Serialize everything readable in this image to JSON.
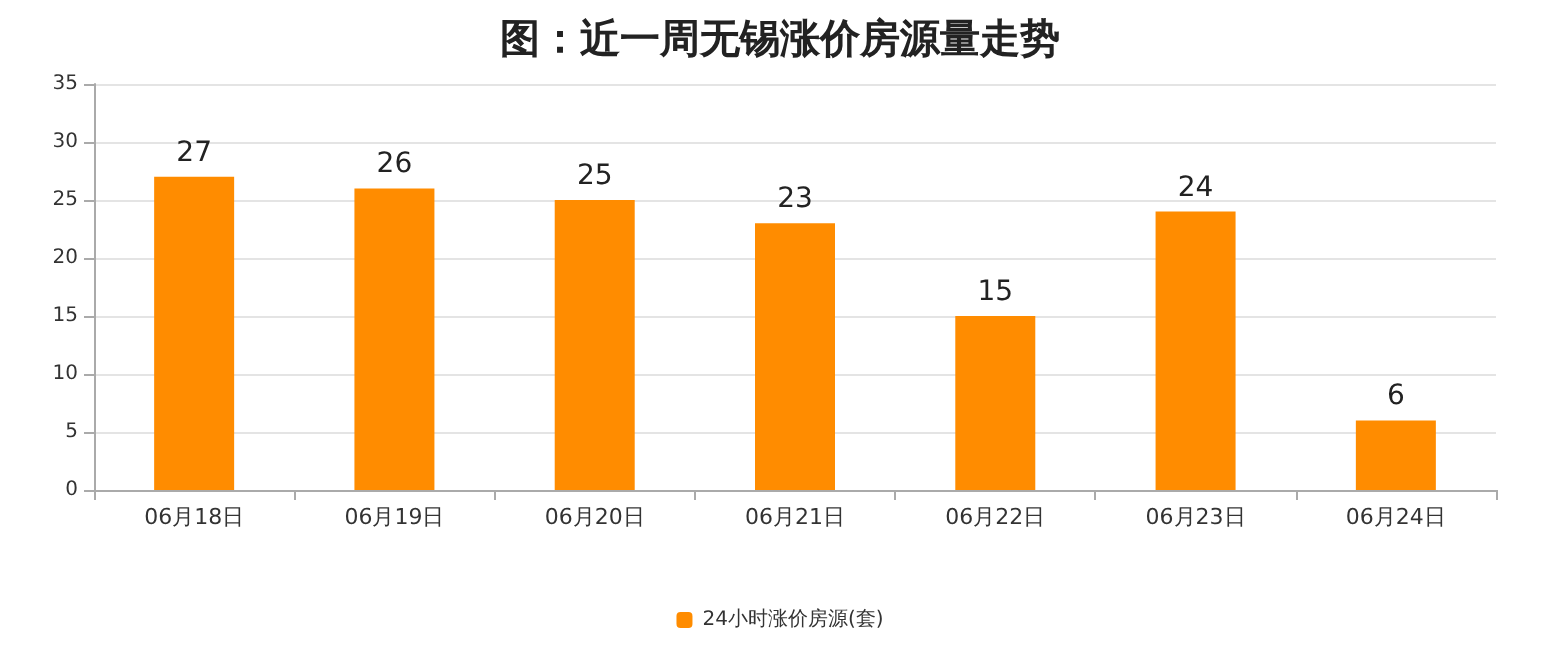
{
  "chart_data": {
    "type": "bar",
    "title": "图：近一周无锡涨价房源量走势",
    "categories": [
      "06月18日",
      "06月19日",
      "06月20日",
      "06月21日",
      "06月22日",
      "06月23日",
      "06月24日"
    ],
    "series": [
      {
        "name": "24小时涨价房源(套)",
        "color": "#ff8c00",
        "values": [
          27,
          26,
          25,
          23,
          15,
          24,
          6
        ]
      }
    ],
    "ylim": [
      0,
      35
    ],
    "yticks": [
      0,
      5,
      10,
      15,
      20,
      25,
      30,
      35
    ],
    "grid": "y",
    "legend": "bottom",
    "data_labels": true
  }
}
